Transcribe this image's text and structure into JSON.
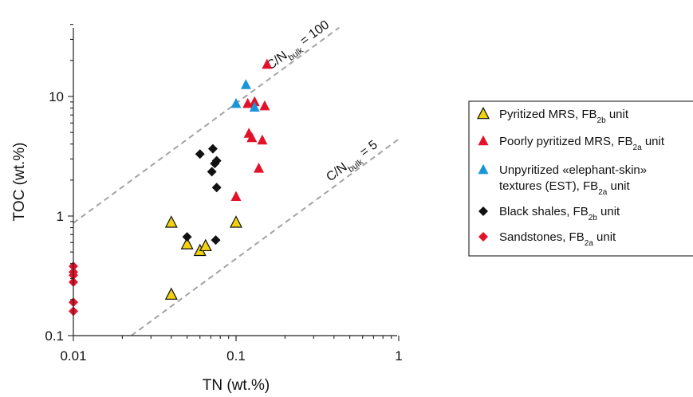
{
  "chart_data": {
    "type": "scatter",
    "x_scale": "log",
    "y_scale": "log",
    "xlim": [
      0.01,
      1
    ],
    "ylim": [
      0.1,
      40
    ],
    "xlabel": "TN (wt.%)",
    "ylabel": "TOC (wt.%)",
    "x_ticks": [
      "0.01",
      "0.1",
      "1"
    ],
    "y_ticks": [
      "0.1",
      "1",
      "10"
    ],
    "reference_lines": [
      {
        "label_main": "C/N",
        "label_sub": "bulk",
        "label_tail": " = 100",
        "ratio": 100
      },
      {
        "label_main": "C/N",
        "label_sub": "bulk",
        "label_tail": " = 5",
        "ratio": 5
      }
    ],
    "series": [
      {
        "name": "Pyritized MRS, FB2b unit",
        "legend_main": "Pyritized MRS, FB",
        "legend_sub": "2b",
        "legend_tail": " unit",
        "marker": "triangle-outline",
        "color": "#f2d20f",
        "points": [
          [
            0.04,
            0.88
          ],
          [
            0.04,
            0.22
          ],
          [
            0.05,
            0.58
          ],
          [
            0.06,
            0.51
          ],
          [
            0.065,
            0.56
          ],
          [
            0.1,
            0.88
          ]
        ]
      },
      {
        "name": "Poorly pyritized MRS, FB2a unit",
        "legend_main": "Poorly pyritized MRS, FB",
        "legend_sub": "2a",
        "legend_tail": " unit",
        "marker": "triangle",
        "color": "#e3122b",
        "points": [
          [
            0.155,
            18.5
          ],
          [
            0.118,
            8.7
          ],
          [
            0.13,
            9.0
          ],
          [
            0.15,
            8.3
          ],
          [
            0.12,
            4.9
          ],
          [
            0.125,
            4.5
          ],
          [
            0.145,
            4.3
          ],
          [
            0.138,
            2.5
          ],
          [
            0.1,
            1.45
          ]
        ]
      },
      {
        "name": "Unpyritized «elephant-skin» textures (EST), FB2a unit",
        "legend_line1": "Unpyritized «elephant-skin»",
        "legend_main": "textures (EST), FB",
        "legend_sub": "2a",
        "legend_tail": " unit",
        "marker": "triangle",
        "color": "#1a96d8",
        "points": [
          [
            0.115,
            12.5
          ],
          [
            0.1,
            8.7
          ],
          [
            0.13,
            8.1
          ]
        ]
      },
      {
        "name": "Black shales, FB2b unit",
        "legend_main": "Black shales, FB",
        "legend_sub": "2b",
        "legend_tail": " unit",
        "marker": "diamond",
        "color": "#111111",
        "points": [
          [
            0.06,
            3.3
          ],
          [
            0.072,
            3.65
          ],
          [
            0.076,
            2.9
          ],
          [
            0.074,
            2.75
          ],
          [
            0.071,
            2.35
          ],
          [
            0.076,
            1.73
          ],
          [
            0.05,
            0.67
          ],
          [
            0.075,
            0.63
          ]
        ]
      },
      {
        "name": "Sandstones, FB2a unit",
        "legend_main": "Sandstones, FB",
        "legend_sub": "2a",
        "legend_tail": " unit",
        "marker": "diamond",
        "color": "#e3122b",
        "points": [
          [
            0.01,
            0.38
          ],
          [
            0.01,
            0.34
          ],
          [
            0.01,
            0.32
          ],
          [
            0.01,
            0.28
          ],
          [
            0.01,
            0.19
          ],
          [
            0.01,
            0.16
          ]
        ]
      }
    ]
  }
}
